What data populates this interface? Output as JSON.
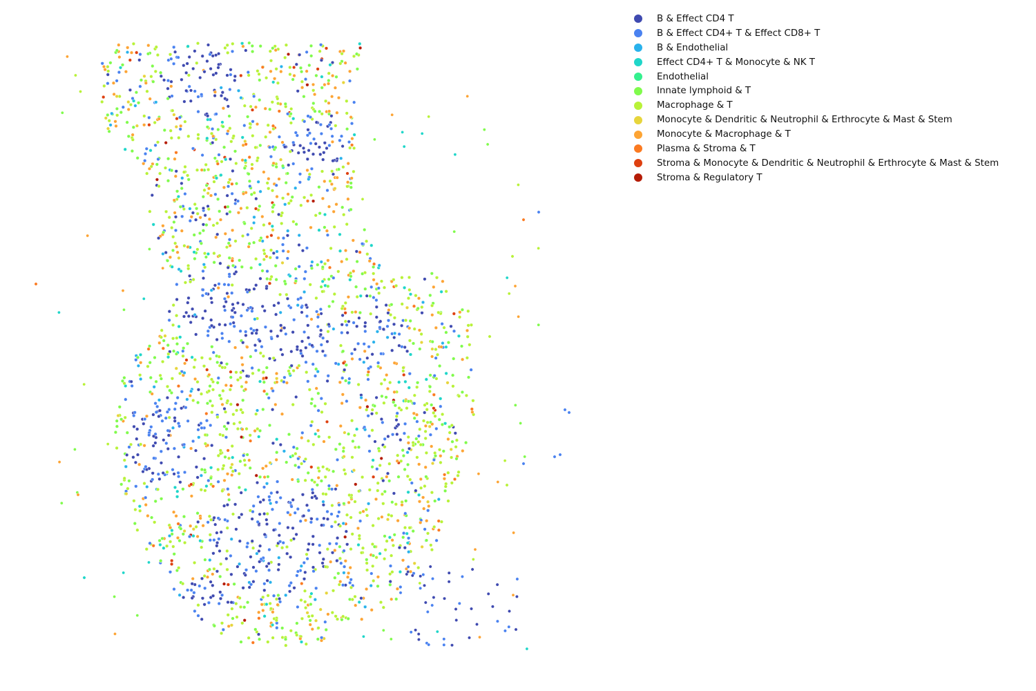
{
  "chart_data": {
    "type": "scatter",
    "title": "",
    "xlabel": "",
    "ylabel": "",
    "axes_visible": false,
    "grid": false,
    "legend_position": "top-right",
    "marker": "small circle with thin white edge",
    "series": [
      {
        "name": "B & Effect CD4 T",
        "color": "#3f4ab0"
      },
      {
        "name": "B & Effect CD4+ T & Effect CD8+ T",
        "color": "#4a82f0"
      },
      {
        "name": "B & Endothelial",
        "color": "#29b2ec"
      },
      {
        "name": "Effect CD4+ T & Monocyte & NK T",
        "color": "#1fd6c9"
      },
      {
        "name": "Endothelial",
        "color": "#34f08e"
      },
      {
        "name": "Innate lymphoid & T",
        "color": "#80fb4c"
      },
      {
        "name": "Macrophage & T",
        "color": "#b8f238"
      },
      {
        "name": "Monocyte & Dendritic & Neutrophil & Erthrocyte & Mast & Stem",
        "color": "#e7d53c"
      },
      {
        "name": "Monocyte & Macrophage & T",
        "color": "#fda434"
      },
      {
        "name": "Plasma & Stroma & T",
        "color": "#fb7a21"
      },
      {
        "name": "Stroma & Monocyte & Dendritic & Neutrophil & Erthrocyte & Mast & Stem",
        "color": "#de4010"
      },
      {
        "name": "Stroma & Regulatory T",
        "color": "#b51c06"
      }
    ]
  }
}
